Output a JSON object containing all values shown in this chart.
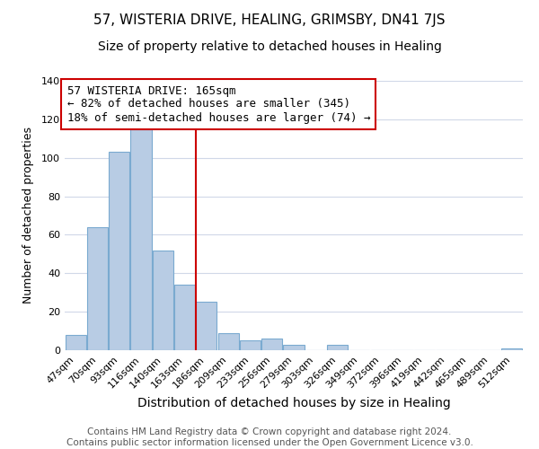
{
  "title": "57, WISTERIA DRIVE, HEALING, GRIMSBY, DN41 7JS",
  "subtitle": "Size of property relative to detached houses in Healing",
  "xlabel": "Distribution of detached houses by size in Healing",
  "ylabel": "Number of detached properties",
  "footer_line1": "Contains HM Land Registry data © Crown copyright and database right 2024.",
  "footer_line2": "Contains public sector information licensed under the Open Government Licence v3.0.",
  "annotation_line1": "57 WISTERIA DRIVE: 165sqm",
  "annotation_line2": "← 82% of detached houses are smaller (345)",
  "annotation_line3": "18% of semi-detached houses are larger (74) →",
  "bar_labels": [
    "47sqm",
    "70sqm",
    "93sqm",
    "116sqm",
    "140sqm",
    "163sqm",
    "186sqm",
    "209sqm",
    "233sqm",
    "256sqm",
    "279sqm",
    "303sqm",
    "326sqm",
    "349sqm",
    "372sqm",
    "396sqm",
    "419sqm",
    "442sqm",
    "465sqm",
    "489sqm",
    "512sqm"
  ],
  "bar_values": [
    8,
    64,
    103,
    115,
    52,
    34,
    25,
    9,
    5,
    6,
    3,
    0,
    3,
    0,
    0,
    0,
    0,
    0,
    0,
    0,
    1
  ],
  "bar_color": "#b8cce4",
  "bar_edge_color": "#7aaad0",
  "ref_line_x": 5.5,
  "ref_line_color": "#cc0000",
  "annotation_box_edge_color": "#cc0000",
  "ylim": [
    0,
    140
  ],
  "xlim": [
    -0.5,
    20.5
  ],
  "background_color": "#ffffff",
  "grid_color": "#d0d8e8",
  "title_fontsize": 11,
  "subtitle_fontsize": 10,
  "xlabel_fontsize": 10,
  "ylabel_fontsize": 9,
  "tick_fontsize": 8,
  "footer_fontsize": 7.5,
  "annotation_fontsize": 9
}
